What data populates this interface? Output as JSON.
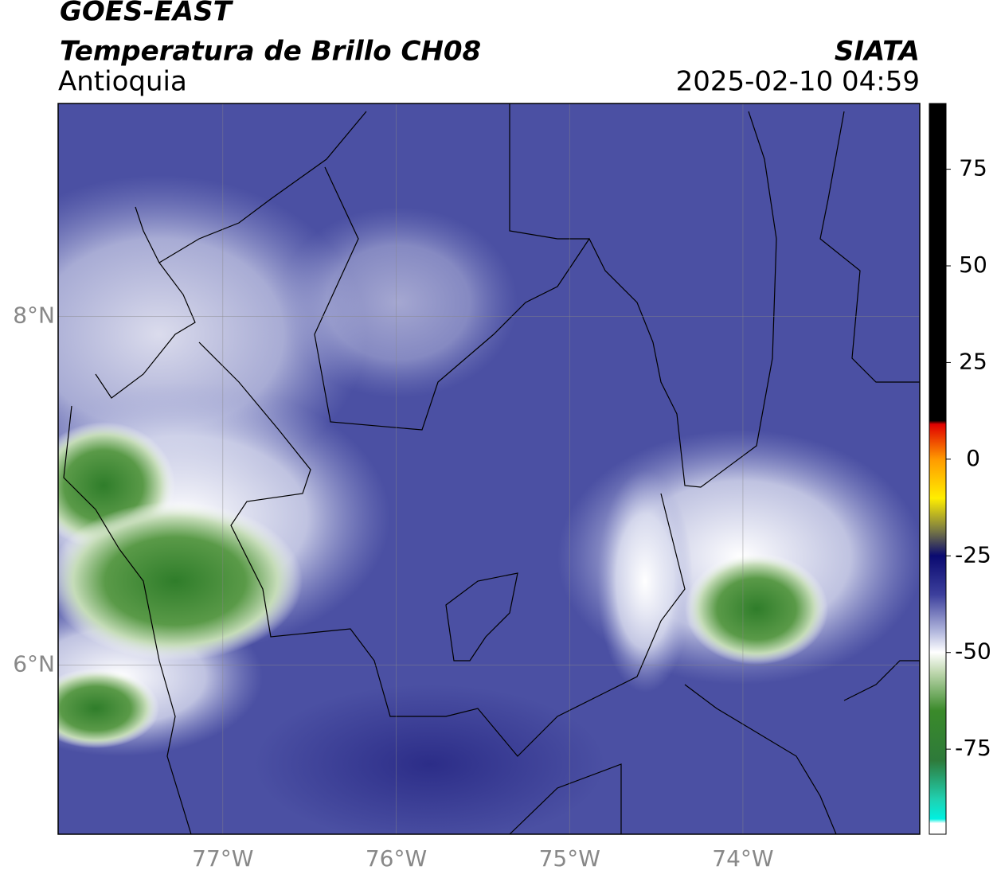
{
  "header": {
    "satellite": "GOES-EAST",
    "product": "Temperatura de Brillo CH08",
    "region": "Antioquia",
    "source": "SIATA",
    "timestamp": "2025-02-10 04:59"
  },
  "chart_data": {
    "type": "map",
    "xlim": [
      -77.95,
      -72.98
    ],
    "ylim": [
      5.03,
      9.22
    ],
    "xticks": [
      {
        "value": -77,
        "label": "77°W"
      },
      {
        "value": -76,
        "label": "76°W"
      },
      {
        "value": -75,
        "label": "75°W"
      },
      {
        "value": -74,
        "label": "74°W"
      }
    ],
    "yticks": [
      {
        "value": 8,
        "label": "8°N"
      },
      {
        "value": 6,
        "label": "6°N"
      }
    ],
    "grid": true,
    "colorbar": {
      "lim": [
        -97,
        92
      ],
      "ticks": [
        75,
        50,
        25,
        0,
        -25,
        -50,
        -75
      ]
    }
  }
}
